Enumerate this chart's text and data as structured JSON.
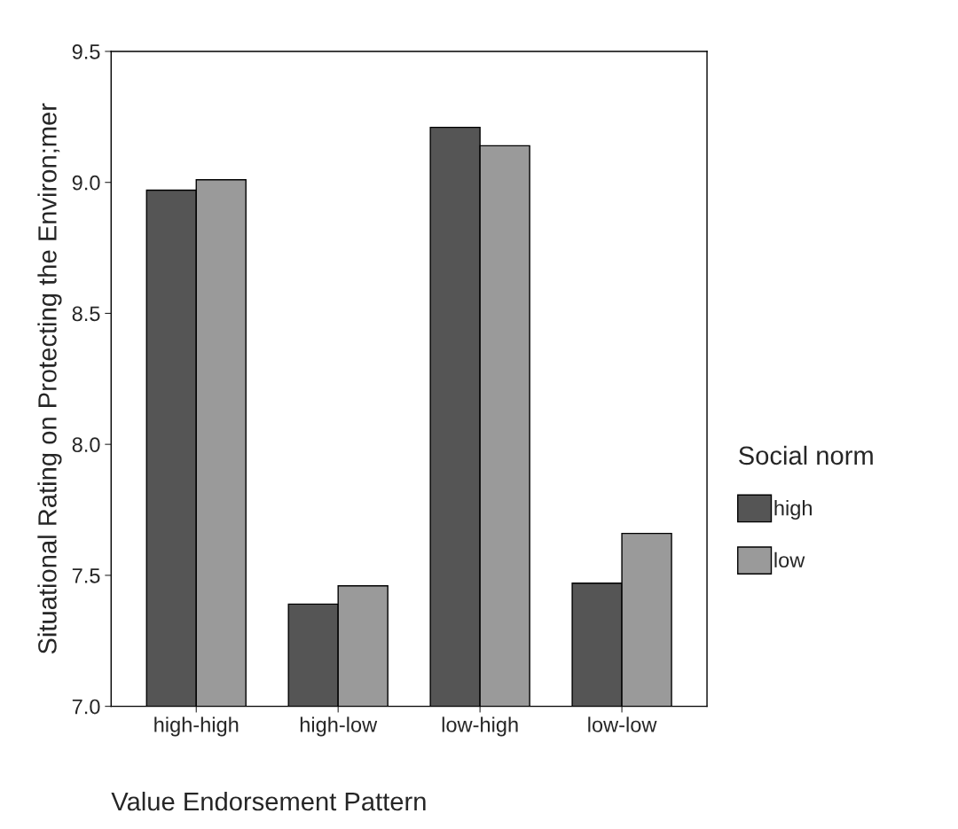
{
  "chart_data": {
    "type": "bar",
    "xlabel": "Value Endorsement Pattern",
    "ylabel": "Situational Rating on Protecting the Environ;mer",
    "legend_title": "Social norm",
    "categories": [
      "high-high",
      "high-low",
      "low-high",
      "low-low"
    ],
    "series": [
      {
        "name": "high",
        "color": "#555555",
        "values": [
          8.97,
          7.39,
          9.21,
          7.47
        ]
      },
      {
        "name": "low",
        "color": "#9a9a9a",
        "values": [
          9.01,
          7.46,
          9.14,
          7.66
        ]
      }
    ],
    "ylim": [
      7.0,
      9.5
    ],
    "yticks": [
      {
        "value": 7.0,
        "label": "7.0"
      },
      {
        "value": 7.5,
        "label": "7.5"
      },
      {
        "value": 8.0,
        "label": "8.0"
      },
      {
        "value": 8.5,
        "label": "8.5"
      },
      {
        "value": 9.0,
        "label": "9.0"
      },
      {
        "value": 9.5,
        "label": "9.5"
      }
    ],
    "grid": false,
    "legend": "right"
  }
}
